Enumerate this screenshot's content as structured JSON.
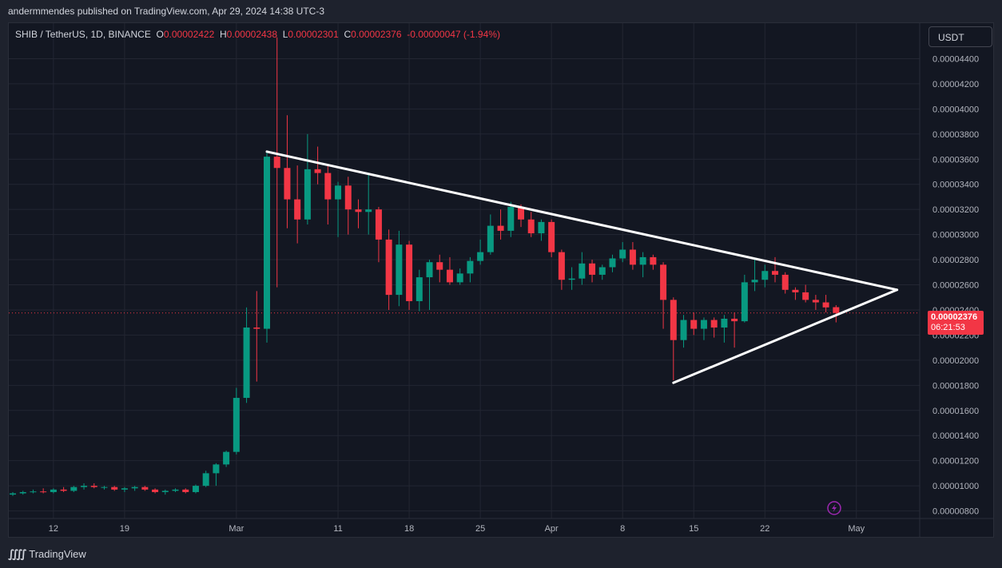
{
  "header": {
    "published_text": "andermmendes published on TradingView.com, Apr 29, 2024 14:38 UTC-3"
  },
  "legend": {
    "symbol": "SHIB / TetherUS, 1D, BINANCE",
    "open_label": "O",
    "open": "0.00002422",
    "high_label": "H",
    "high": "0.00002438",
    "low_label": "L",
    "low": "0.00002301",
    "close_label": "C",
    "close": "0.00002376",
    "change": "-0.00000047 (-1.94%)"
  },
  "currency_button": {
    "label": "USDT"
  },
  "price_badge": {
    "price": "0.00002376",
    "countdown": "06:21:53"
  },
  "footer": {
    "brand": "TradingView"
  },
  "colors": {
    "up": "#089981",
    "down": "#f23645",
    "background": "#131722",
    "grid": "#232632",
    "lines": "#ffffff"
  },
  "icons": {
    "footer_logo": "tradingview-logo-icon",
    "event": "lightning-icon"
  },
  "chart_data": {
    "type": "candlestick",
    "ylim": [
      7.4e-06,
      4.67e-05
    ],
    "y_ticks": [
      "0.00004400",
      "0.00004200",
      "0.00004000",
      "0.00003800",
      "0.00003600",
      "0.00003400",
      "0.00003200",
      "0.00003000",
      "0.00002800",
      "0.00002600",
      "0.00002400",
      "0.00002200",
      "0.00002000",
      "0.00001800",
      "0.00001600",
      "0.00001400",
      "0.00001200",
      "0.00001000",
      "0.00000800"
    ],
    "y_tick_values": [
      4.4e-05,
      4.2e-05,
      4e-05,
      3.8e-05,
      3.6e-05,
      3.4e-05,
      3.2e-05,
      3e-05,
      2.8e-05,
      2.6e-05,
      2.4e-05,
      2.2e-05,
      2e-05,
      1.8e-05,
      1.6e-05,
      1.4e-05,
      1.2e-05,
      1e-05,
      8e-06
    ],
    "x_ticks": [
      {
        "label": "12",
        "date": "2024-02-12"
      },
      {
        "label": "19",
        "date": "2024-02-19"
      },
      {
        "label": "Mar",
        "date": "2024-03-01"
      },
      {
        "label": "11",
        "date": "2024-03-11"
      },
      {
        "label": "18",
        "date": "2024-03-18"
      },
      {
        "label": "25",
        "date": "2024-03-25"
      },
      {
        "label": "Apr",
        "date": "2024-04-01"
      },
      {
        "label": "8",
        "date": "2024-04-08"
      },
      {
        "label": "15",
        "date": "2024-04-15"
      },
      {
        "label": "22",
        "date": "2024-04-22"
      },
      {
        "label": "May",
        "date": "2024-05-01"
      }
    ],
    "candles": [
      {
        "date": "2024-02-08",
        "o": 9.3e-06,
        "h": 9.5e-06,
        "l": 9.2e-06,
        "c": 9.4e-06
      },
      {
        "date": "2024-02-09",
        "o": 9.4e-06,
        "h": 9.6e-06,
        "l": 9.3e-06,
        "c": 9.5e-06
      },
      {
        "date": "2024-02-10",
        "o": 9.5e-06,
        "h": 9.7e-06,
        "l": 9.4e-06,
        "c": 9.55e-06
      },
      {
        "date": "2024-02-11",
        "o": 9.55e-06,
        "h": 9.8e-06,
        "l": 9.4e-06,
        "c": 9.5e-06
      },
      {
        "date": "2024-02-12",
        "o": 9.5e-06,
        "h": 9.8e-06,
        "l": 9.4e-06,
        "c": 9.7e-06
      },
      {
        "date": "2024-02-13",
        "o": 9.7e-06,
        "h": 9.9e-06,
        "l": 9.5e-06,
        "c": 9.6e-06
      },
      {
        "date": "2024-02-14",
        "o": 9.6e-06,
        "h": 1e-05,
        "l": 9.5e-06,
        "c": 9.9e-06
      },
      {
        "date": "2024-02-15",
        "o": 9.9e-06,
        "h": 1.02e-05,
        "l": 9.7e-06,
        "c": 1e-05
      },
      {
        "date": "2024-02-16",
        "o": 1e-05,
        "h": 1.02e-05,
        "l": 9.8e-06,
        "c": 9.9e-06
      },
      {
        "date": "2024-02-17",
        "o": 9.9e-06,
        "h": 1e-05,
        "l": 9.7e-06,
        "c": 9.9e-06
      },
      {
        "date": "2024-02-18",
        "o": 9.9e-06,
        "h": 1e-05,
        "l": 9.6e-06,
        "c": 9.7e-06
      },
      {
        "date": "2024-02-19",
        "o": 9.7e-06,
        "h": 9.9e-06,
        "l": 9.5e-06,
        "c": 9.8e-06
      },
      {
        "date": "2024-02-20",
        "o": 9.8e-06,
        "h": 1e-05,
        "l": 9.6e-06,
        "c": 9.9e-06
      },
      {
        "date": "2024-02-21",
        "o": 9.9e-06,
        "h": 1e-05,
        "l": 9.6e-06,
        "c": 9.7e-06
      },
      {
        "date": "2024-02-22",
        "o": 9.7e-06,
        "h": 9.8e-06,
        "l": 9.4e-06,
        "c": 9.5e-06
      },
      {
        "date": "2024-02-23",
        "o": 9.5e-06,
        "h": 9.7e-06,
        "l": 9.3e-06,
        "c": 9.6e-06
      },
      {
        "date": "2024-02-24",
        "o": 9.6e-06,
        "h": 9.8e-06,
        "l": 9.5e-06,
        "c": 9.7e-06
      },
      {
        "date": "2024-02-25",
        "o": 9.7e-06,
        "h": 9.8e-06,
        "l": 9.4e-06,
        "c": 9.5e-06
      },
      {
        "date": "2024-02-26",
        "o": 9.5e-06,
        "h": 1.01e-05,
        "l": 9.4e-06,
        "c": 1e-05
      },
      {
        "date": "2024-02-27",
        "o": 1e-05,
        "h": 1.12e-05,
        "l": 9.9e-06,
        "c": 1.1e-05
      },
      {
        "date": "2024-02-28",
        "o": 1.1e-05,
        "h": 1.18e-05,
        "l": 1e-05,
        "c": 1.17e-05
      },
      {
        "date": "2024-02-29",
        "o": 1.17e-05,
        "h": 1.28e-05,
        "l": 1.15e-05,
        "c": 1.27e-05
      },
      {
        "date": "2024-03-01",
        "o": 1.27e-05,
        "h": 1.78e-05,
        "l": 1.25e-05,
        "c": 1.7e-05
      },
      {
        "date": "2024-03-02",
        "o": 1.7e-05,
        "h": 2.42e-05,
        "l": 1.66e-05,
        "c": 2.26e-05
      },
      {
        "date": "2024-03-03",
        "o": 2.26e-05,
        "h": 2.55e-05,
        "l": 1.83e-05,
        "c": 2.25e-05
      },
      {
        "date": "2024-03-04",
        "o": 2.25e-05,
        "h": 3.66e-05,
        "l": 2.14e-05,
        "c": 3.62e-05
      },
      {
        "date": "2024-03-05",
        "o": 3.62e-05,
        "h": 4.57e-05,
        "l": 2.58e-05,
        "c": 3.53e-05
      },
      {
        "date": "2024-03-06",
        "o": 3.53e-05,
        "h": 3.95e-05,
        "l": 3.05e-05,
        "c": 3.28e-05
      },
      {
        "date": "2024-03-07",
        "o": 3.28e-05,
        "h": 3.55e-05,
        "l": 2.93e-05,
        "c": 3.12e-05
      },
      {
        "date": "2024-03-08",
        "o": 3.12e-05,
        "h": 3.8e-05,
        "l": 3.08e-05,
        "c": 3.52e-05
      },
      {
        "date": "2024-03-09",
        "o": 3.52e-05,
        "h": 3.7e-05,
        "l": 3.4e-05,
        "c": 3.49e-05
      },
      {
        "date": "2024-03-10",
        "o": 3.49e-05,
        "h": 3.56e-05,
        "l": 3.08e-05,
        "c": 3.28e-05
      },
      {
        "date": "2024-03-11",
        "o": 3.28e-05,
        "h": 3.42e-05,
        "l": 2.98e-05,
        "c": 3.39e-05
      },
      {
        "date": "2024-03-12",
        "o": 3.39e-05,
        "h": 3.46e-05,
        "l": 3e-05,
        "c": 3.2e-05
      },
      {
        "date": "2024-03-13",
        "o": 3.2e-05,
        "h": 3.28e-05,
        "l": 3.05e-05,
        "c": 3.18e-05
      },
      {
        "date": "2024-03-14",
        "o": 3.18e-05,
        "h": 3.49e-05,
        "l": 3e-05,
        "c": 3.2e-05
      },
      {
        "date": "2024-03-15",
        "o": 3.2e-05,
        "h": 3.22e-05,
        "l": 2.78e-05,
        "c": 2.96e-05
      },
      {
        "date": "2024-03-16",
        "o": 2.96e-05,
        "h": 3.04e-05,
        "l": 2.4e-05,
        "c": 2.52e-05
      },
      {
        "date": "2024-03-17",
        "o": 2.52e-05,
        "h": 3.03e-05,
        "l": 2.43e-05,
        "c": 2.92e-05
      },
      {
        "date": "2024-03-18",
        "o": 2.92e-05,
        "h": 2.95e-05,
        "l": 2.4e-05,
        "c": 2.47e-05
      },
      {
        "date": "2024-03-19",
        "o": 2.47e-05,
        "h": 2.72e-05,
        "l": 2.39e-05,
        "c": 2.66e-05
      },
      {
        "date": "2024-03-20",
        "o": 2.66e-05,
        "h": 2.8e-05,
        "l": 2.4e-05,
        "c": 2.78e-05
      },
      {
        "date": "2024-03-21",
        "o": 2.78e-05,
        "h": 2.84e-05,
        "l": 2.62e-05,
        "c": 2.72e-05
      },
      {
        "date": "2024-03-22",
        "o": 2.72e-05,
        "h": 2.82e-05,
        "l": 2.6e-05,
        "c": 2.62e-05
      },
      {
        "date": "2024-03-23",
        "o": 2.62e-05,
        "h": 2.73e-05,
        "l": 2.6e-05,
        "c": 2.69e-05
      },
      {
        "date": "2024-03-24",
        "o": 2.69e-05,
        "h": 2.82e-05,
        "l": 2.62e-05,
        "c": 2.79e-05
      },
      {
        "date": "2024-03-25",
        "o": 2.79e-05,
        "h": 2.96e-05,
        "l": 2.76e-05,
        "c": 2.86e-05
      },
      {
        "date": "2024-03-26",
        "o": 2.86e-05,
        "h": 3.16e-05,
        "l": 2.84e-05,
        "c": 3.07e-05
      },
      {
        "date": "2024-03-27",
        "o": 3.07e-05,
        "h": 3.2e-05,
        "l": 2.96e-05,
        "c": 3.03e-05
      },
      {
        "date": "2024-03-28",
        "o": 3.03e-05,
        "h": 3.26e-05,
        "l": 2.98e-05,
        "c": 3.22e-05
      },
      {
        "date": "2024-03-29",
        "o": 3.22e-05,
        "h": 3.24e-05,
        "l": 3.06e-05,
        "c": 3.12e-05
      },
      {
        "date": "2024-03-30",
        "o": 3.12e-05,
        "h": 3.18e-05,
        "l": 2.98e-05,
        "c": 3.01e-05
      },
      {
        "date": "2024-03-31",
        "o": 3.01e-05,
        "h": 3.12e-05,
        "l": 2.95e-05,
        "c": 3.1e-05
      },
      {
        "date": "2024-04-01",
        "o": 3.1e-05,
        "h": 3.12e-05,
        "l": 2.82e-05,
        "c": 2.86e-05
      },
      {
        "date": "2024-04-02",
        "o": 2.86e-05,
        "h": 2.88e-05,
        "l": 2.56e-05,
        "c": 2.64e-05
      },
      {
        "date": "2024-04-03",
        "o": 2.64e-05,
        "h": 2.74e-05,
        "l": 2.56e-05,
        "c": 2.65e-05
      },
      {
        "date": "2024-04-04",
        "o": 2.65e-05,
        "h": 2.86e-05,
        "l": 2.6e-05,
        "c": 2.77e-05
      },
      {
        "date": "2024-04-05",
        "o": 2.77e-05,
        "h": 2.8e-05,
        "l": 2.62e-05,
        "c": 2.68e-05
      },
      {
        "date": "2024-04-06",
        "o": 2.68e-05,
        "h": 2.76e-05,
        "l": 2.64e-05,
        "c": 2.74e-05
      },
      {
        "date": "2024-04-07",
        "o": 2.74e-05,
        "h": 2.84e-05,
        "l": 2.7e-05,
        "c": 2.81e-05
      },
      {
        "date": "2024-04-08",
        "o": 2.81e-05,
        "h": 2.94e-05,
        "l": 2.78e-05,
        "c": 2.88e-05
      },
      {
        "date": "2024-04-09",
        "o": 2.88e-05,
        "h": 2.94e-05,
        "l": 2.72e-05,
        "c": 2.76e-05
      },
      {
        "date": "2024-04-10",
        "o": 2.76e-05,
        "h": 2.86e-05,
        "l": 2.66e-05,
        "c": 2.82e-05
      },
      {
        "date": "2024-04-11",
        "o": 2.82e-05,
        "h": 2.84e-05,
        "l": 2.72e-05,
        "c": 2.76e-05
      },
      {
        "date": "2024-04-12",
        "o": 2.76e-05,
        "h": 2.78e-05,
        "l": 2.25e-05,
        "c": 2.48e-05
      },
      {
        "date": "2024-04-13",
        "o": 2.48e-05,
        "h": 2.5e-05,
        "l": 1.84e-05,
        "c": 2.16e-05
      },
      {
        "date": "2024-04-14",
        "o": 2.16e-05,
        "h": 2.36e-05,
        "l": 2.1e-05,
        "c": 2.32e-05
      },
      {
        "date": "2024-04-15",
        "o": 2.32e-05,
        "h": 2.38e-05,
        "l": 2.2e-05,
        "c": 2.25e-05
      },
      {
        "date": "2024-04-16",
        "o": 2.25e-05,
        "h": 2.34e-05,
        "l": 2.16e-05,
        "c": 2.32e-05
      },
      {
        "date": "2024-04-17",
        "o": 2.32e-05,
        "h": 2.34e-05,
        "l": 2.18e-05,
        "c": 2.26e-05
      },
      {
        "date": "2024-04-18",
        "o": 2.26e-05,
        "h": 2.36e-05,
        "l": 2.14e-05,
        "c": 2.33e-05
      },
      {
        "date": "2024-04-19",
        "o": 2.33e-05,
        "h": 2.38e-05,
        "l": 2.1e-05,
        "c": 2.31e-05
      },
      {
        "date": "2024-04-20",
        "o": 2.31e-05,
        "h": 2.68e-05,
        "l": 2.3e-05,
        "c": 2.62e-05
      },
      {
        "date": "2024-04-21",
        "o": 2.62e-05,
        "h": 2.8e-05,
        "l": 2.55e-05,
        "c": 2.64e-05
      },
      {
        "date": "2024-04-22",
        "o": 2.64e-05,
        "h": 2.76e-05,
        "l": 2.58e-05,
        "c": 2.71e-05
      },
      {
        "date": "2024-04-23",
        "o": 2.71e-05,
        "h": 2.82e-05,
        "l": 2.62e-05,
        "c": 2.68e-05
      },
      {
        "date": "2024-04-24",
        "o": 2.68e-05,
        "h": 2.7e-05,
        "l": 2.53e-05,
        "c": 2.56e-05
      },
      {
        "date": "2024-04-25",
        "o": 2.56e-05,
        "h": 2.58e-05,
        "l": 2.48e-05,
        "c": 2.54e-05
      },
      {
        "date": "2024-04-26",
        "o": 2.54e-05,
        "h": 2.6e-05,
        "l": 2.46e-05,
        "c": 2.48e-05
      },
      {
        "date": "2024-04-27",
        "o": 2.48e-05,
        "h": 2.52e-05,
        "l": 2.4e-05,
        "c": 2.46e-05
      },
      {
        "date": "2024-04-28",
        "o": 2.46e-05,
        "h": 2.52e-05,
        "l": 2.38e-05,
        "c": 2.42e-05
      },
      {
        "date": "2024-04-29",
        "o": 2.422e-05,
        "h": 2.438e-05,
        "l": 2.301e-05,
        "c": 2.376e-05
      }
    ],
    "trendlines": [
      {
        "name": "upper",
        "points": [
          {
            "date": "2024-03-04",
            "value": 3.66e-05
          },
          {
            "date": "2024-05-05",
            "value": 2.56e-05
          }
        ]
      },
      {
        "name": "lower",
        "points": [
          {
            "date": "2024-04-13",
            "value": 1.82e-05
          },
          {
            "date": "2024-05-05",
            "value": 2.56e-05
          }
        ]
      }
    ],
    "current_price": 2.376e-05
  }
}
